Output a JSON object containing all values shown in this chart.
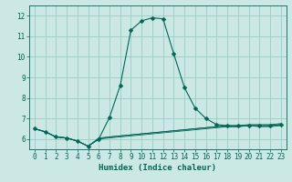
{
  "title": "",
  "xlabel": "Humidex (Indice chaleur)",
  "ylabel": "",
  "bg_color": "#cce8e4",
  "grid_color": "#99ccc6",
  "line_color": "#006655",
  "xlim": [
    -0.5,
    23.5
  ],
  "ylim": [
    5.5,
    12.5
  ],
  "yticks": [
    6,
    7,
    8,
    9,
    10,
    11,
    12
  ],
  "xticks": [
    0,
    1,
    2,
    3,
    4,
    5,
    6,
    7,
    8,
    9,
    10,
    11,
    12,
    13,
    14,
    15,
    16,
    17,
    18,
    19,
    20,
    21,
    22,
    23
  ],
  "curve_main_x": [
    0,
    1,
    2,
    3,
    4,
    5,
    6,
    7,
    8,
    9,
    10,
    11,
    12,
    13,
    14,
    15,
    16,
    17,
    18,
    19,
    20,
    21,
    22,
    23
  ],
  "curve_main_y": [
    6.5,
    6.35,
    6.1,
    6.05,
    5.9,
    5.65,
    6.0,
    7.05,
    8.6,
    11.3,
    11.75,
    11.9,
    11.85,
    10.15,
    8.5,
    7.5,
    7.0,
    6.7,
    6.65,
    6.65,
    6.65,
    6.65,
    6.65,
    6.7
  ],
  "curve1_x": [
    0,
    1,
    2,
    3,
    4,
    5,
    6,
    7,
    8,
    9,
    10,
    11,
    12,
    13,
    14,
    15,
    16,
    17,
    18,
    19,
    20,
    21,
    22,
    23
  ],
  "curve1_y": [
    6.5,
    6.35,
    6.1,
    6.05,
    5.9,
    5.65,
    6.05,
    6.1,
    6.15,
    6.2,
    6.25,
    6.3,
    6.35,
    6.4,
    6.45,
    6.5,
    6.55,
    6.6,
    6.6,
    6.6,
    6.65,
    6.6,
    6.6,
    6.65
  ],
  "curve2_x": [
    0,
    1,
    2,
    3,
    4,
    5,
    6,
    7,
    8,
    9,
    10,
    11,
    12,
    13,
    14,
    15,
    16,
    17,
    18,
    19,
    20,
    21,
    22,
    23
  ],
  "curve2_y": [
    6.5,
    6.35,
    6.1,
    6.05,
    5.9,
    5.65,
    6.0,
    6.05,
    6.1,
    6.15,
    6.2,
    6.25,
    6.3,
    6.35,
    6.4,
    6.45,
    6.5,
    6.55,
    6.6,
    6.6,
    6.65,
    6.65,
    6.65,
    6.7
  ],
  "curve3_x": [
    0,
    1,
    2,
    3,
    4,
    5,
    6,
    7,
    8,
    9,
    10,
    11,
    12,
    13,
    14,
    15,
    16,
    17,
    18,
    19,
    20,
    21,
    22,
    23
  ],
  "curve3_y": [
    6.5,
    6.35,
    6.1,
    6.05,
    5.9,
    5.65,
    6.0,
    6.1,
    6.15,
    6.2,
    6.25,
    6.3,
    6.35,
    6.4,
    6.45,
    6.5,
    6.55,
    6.6,
    6.65,
    6.65,
    6.7,
    6.7,
    6.7,
    6.75
  ],
  "marker_size": 2.5,
  "xlabel_fontsize": 6.5,
  "tick_fontsize": 5.5
}
